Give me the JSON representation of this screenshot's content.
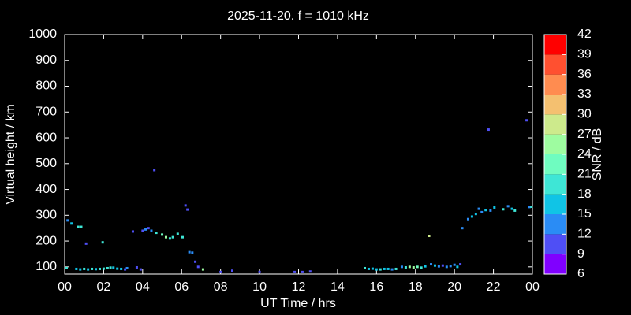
{
  "chart_data": {
    "type": "scatter",
    "title": "2025-11-20. f = 1010 kHz",
    "xlabel": "UT Time / hrs",
    "ylabel": "Virtual height / km",
    "xlim": [
      0,
      24
    ],
    "xticks": [
      {
        "value": 0,
        "label": "00"
      },
      {
        "value": 2,
        "label": "02"
      },
      {
        "value": 4,
        "label": "04"
      },
      {
        "value": 6,
        "label": "06"
      },
      {
        "value": 8,
        "label": "08"
      },
      10,
      12,
      14,
      16,
      18,
      20,
      22,
      {
        "value": 24,
        "label": "00"
      }
    ],
    "ylim": [
      72,
      1000
    ],
    "yticks": [
      100,
      200,
      300,
      400,
      500,
      600,
      700,
      800,
      900,
      1000
    ],
    "x": [
      0.1,
      0.15,
      0.35,
      0.7,
      0.85,
      0.6,
      0.8,
      1.0,
      1.1,
      1.2,
      1.4,
      1.6,
      1.8,
      1.95,
      2.0,
      2.2,
      2.35,
      2.5,
      2.7,
      2.9,
      3.1,
      3.2,
      3.5,
      3.7,
      3.9,
      4.0,
      4.15,
      4.3,
      4.45,
      4.6,
      4.7,
      5.0,
      5.2,
      5.4,
      5.55,
      5.8,
      6.05,
      6.2,
      6.3,
      6.4,
      6.55,
      6.7,
      6.85,
      7.1,
      8.0,
      8.6,
      10.0,
      11.8,
      12.2,
      12.6,
      15.4,
      15.6,
      15.8,
      16.0,
      16.2,
      16.4,
      16.6,
      16.8,
      17.0,
      17.3,
      17.5,
      17.7,
      17.9,
      18.1,
      18.3,
      18.5,
      18.7,
      18.8,
      19.0,
      19.2,
      19.4,
      19.6,
      19.8,
      20.0,
      20.15,
      20.3,
      20.4,
      20.7,
      20.9,
      21.1,
      21.25,
      21.4,
      21.6,
      21.75,
      21.85,
      22.05,
      22.5,
      22.75,
      22.95,
      23.1,
      23.7,
      23.85,
      23.95
    ],
    "y": [
      95,
      280,
      268,
      255,
      255,
      92,
      90,
      92,
      190,
      90,
      92,
      91,
      92,
      195,
      93,
      95,
      97,
      97,
      93,
      92,
      90,
      95,
      237,
      98,
      90,
      240,
      245,
      250,
      240,
      475,
      232,
      225,
      215,
      210,
      215,
      228,
      215,
      338,
      322,
      157,
      155,
      120,
      100,
      90,
      80,
      85,
      80,
      80,
      80,
      82,
      95,
      92,
      93,
      90,
      90,
      92,
      92,
      90,
      92,
      100,
      98,
      100,
      98,
      100,
      97,
      102,
      220,
      110,
      105,
      102,
      105,
      100,
      103,
      108,
      100,
      110,
      250,
      285,
      295,
      305,
      325,
      312,
      320,
      632,
      318,
      330,
      323,
      335,
      325,
      318,
      668,
      332,
      333
    ],
    "snr": [
      19,
      13,
      16,
      19,
      20,
      17,
      17,
      19,
      11,
      17,
      19,
      17,
      19,
      19,
      19,
      19,
      19,
      17,
      17,
      16,
      10,
      13,
      11,
      11,
      11,
      11,
      13,
      11,
      13,
      11,
      19,
      21,
      26,
      19,
      20,
      18,
      19,
      11,
      11,
      14,
      13,
      11,
      11,
      26,
      11,
      11,
      11,
      11,
      11,
      11,
      19,
      16,
      17,
      17,
      19,
      16,
      17,
      13,
      19,
      13,
      19,
      26,
      26,
      23,
      19,
      16,
      27,
      14,
      16,
      14,
      11,
      14,
      13,
      14,
      16,
      11,
      13,
      13,
      16,
      16,
      14,
      14,
      16,
      11,
      14,
      16,
      18,
      13,
      16,
      19,
      10,
      14,
      19
    ],
    "colorbar": {
      "label": "SNR / dB",
      "ticks": [
        6,
        9,
        12,
        15,
        18,
        21,
        24,
        27,
        30,
        33,
        36,
        39,
        42
      ],
      "colors": [
        "#8000ff",
        "#4f4ff5",
        "#2a8cf5",
        "#10c4e6",
        "#3ee6d6",
        "#6ffcc0",
        "#9efca0",
        "#cdea8c",
        "#f4c070",
        "#ff8c50",
        "#ff5030",
        "#ff0000"
      ]
    }
  }
}
